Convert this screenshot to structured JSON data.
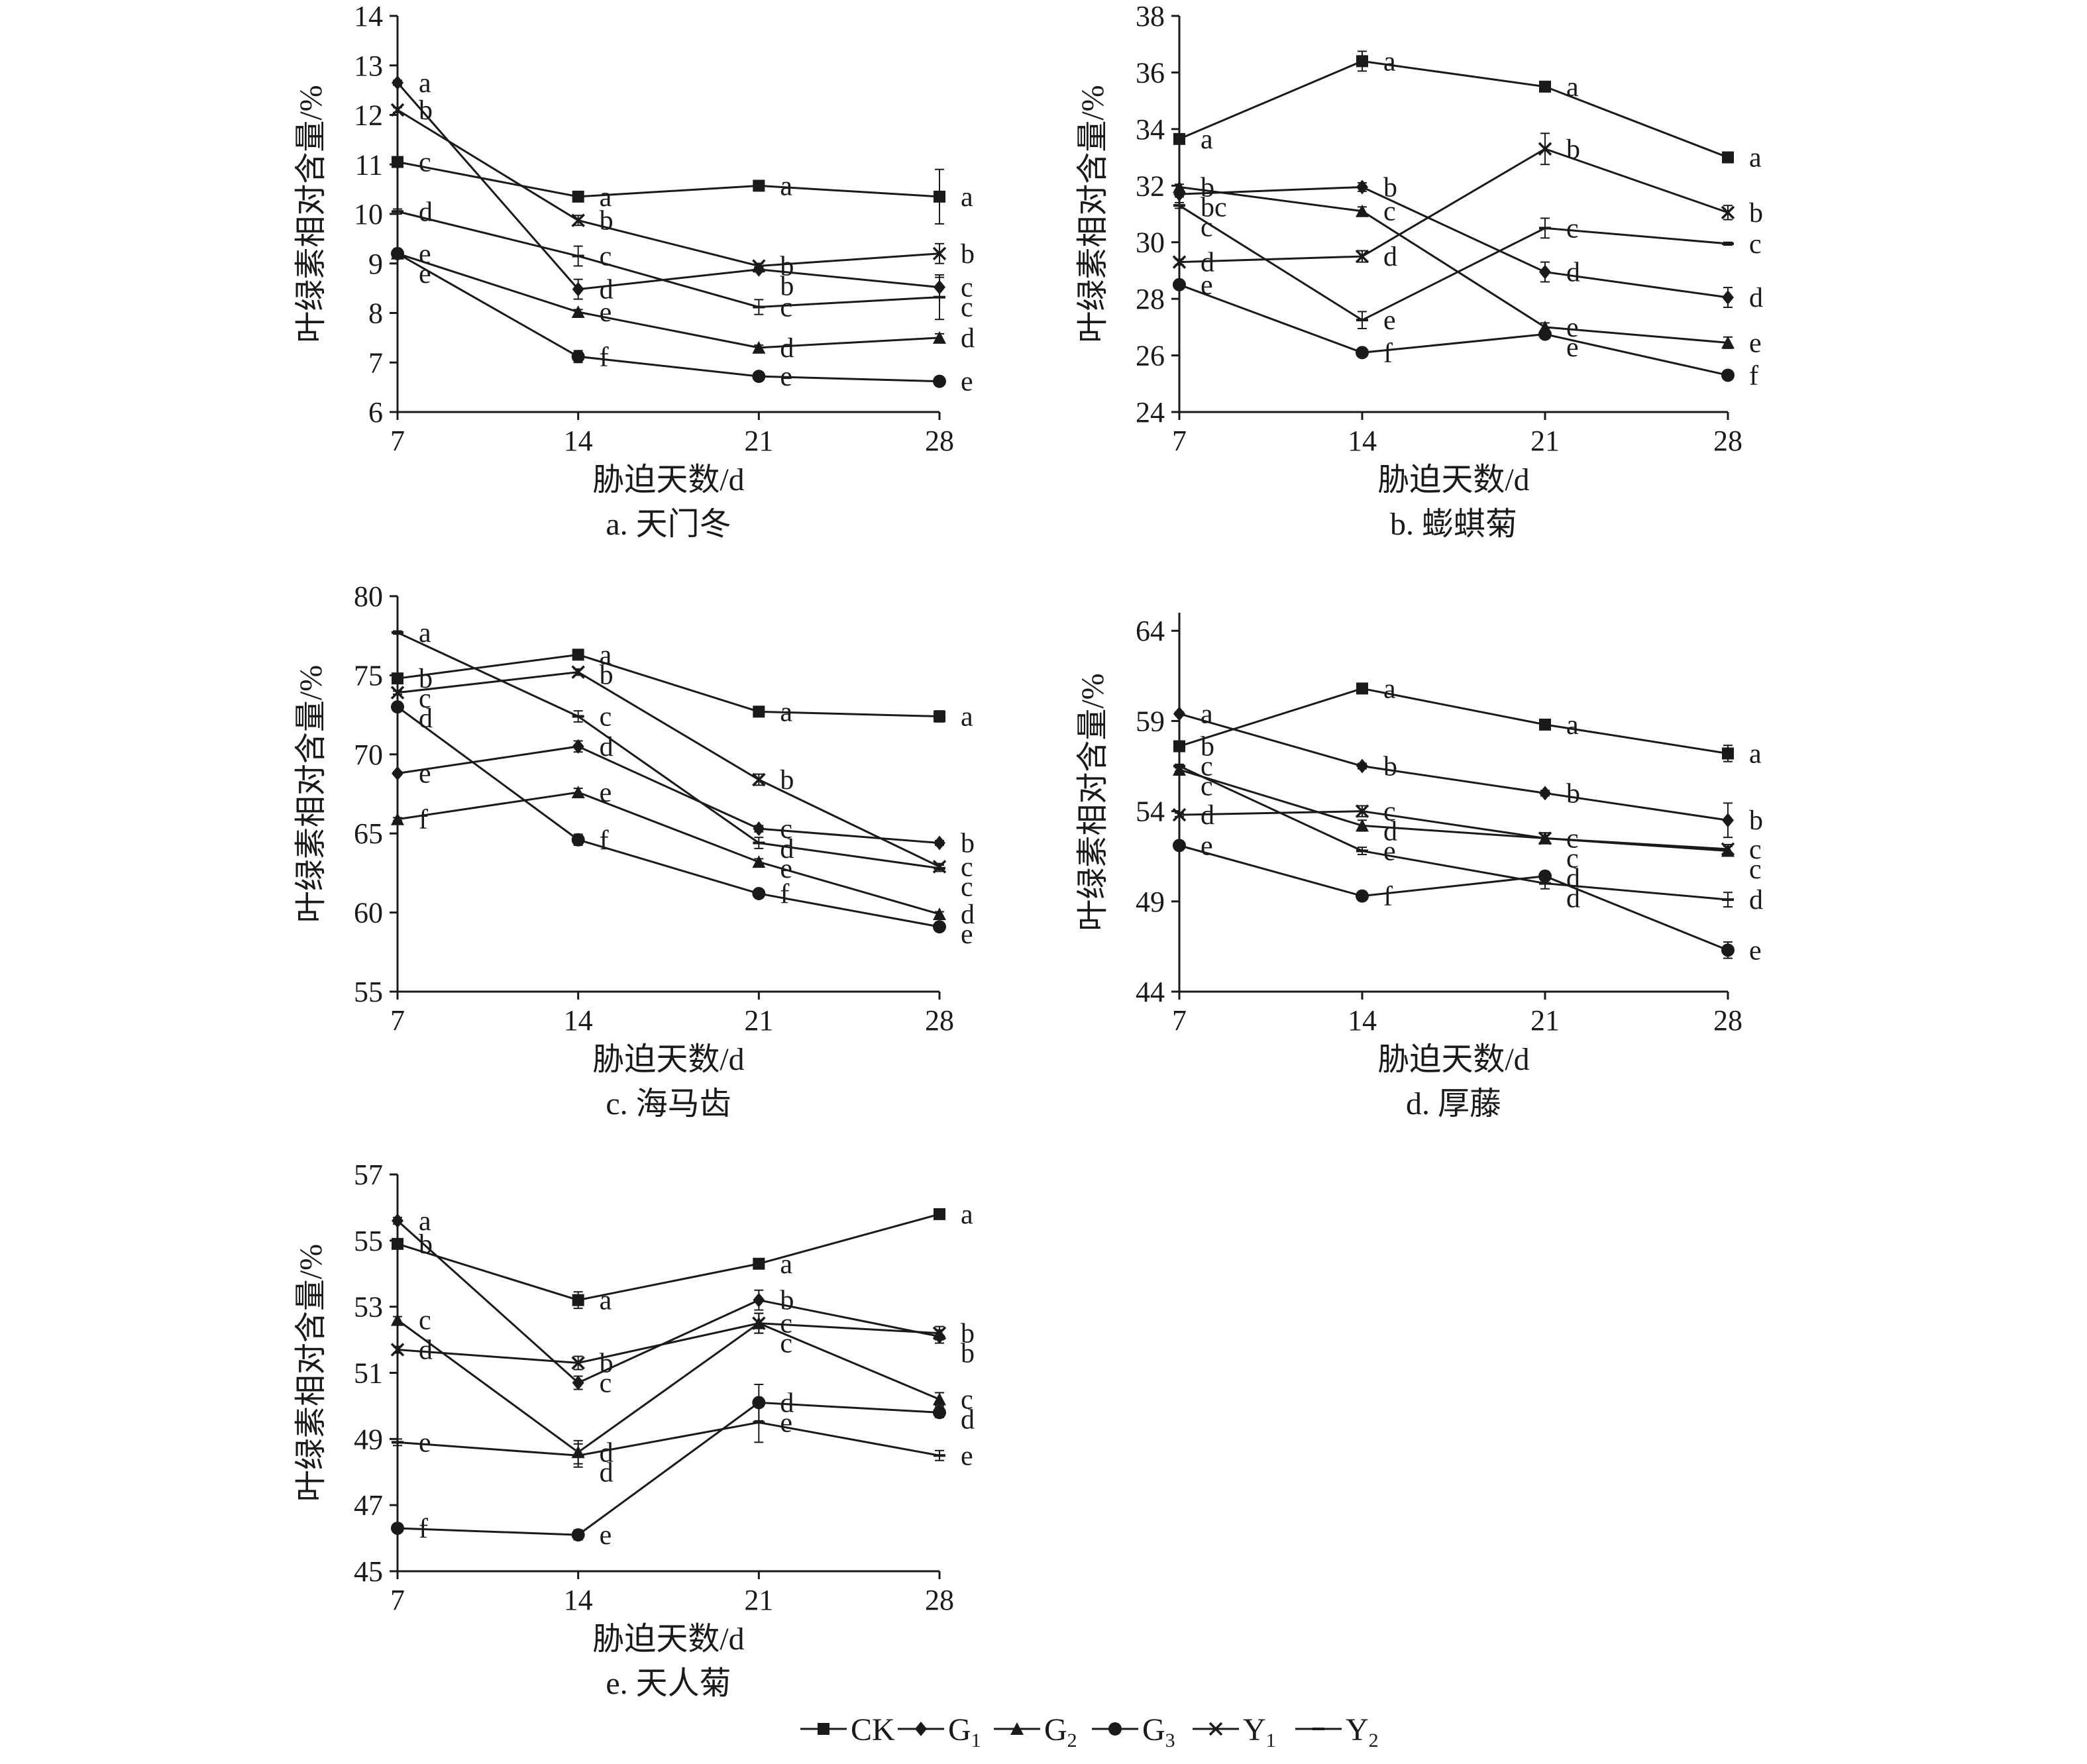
{
  "legend": [
    {
      "name": "CK",
      "base": "CK",
      "sub": "",
      "marker": "square"
    },
    {
      "name": "G1",
      "base": "G",
      "sub": "1",
      "marker": "diamond"
    },
    {
      "name": "G2",
      "base": "G",
      "sub": "2",
      "marker": "triangle"
    },
    {
      "name": "G3",
      "base": "G",
      "sub": "3",
      "marker": "circle"
    },
    {
      "name": "Y1",
      "base": "Y",
      "sub": "1",
      "marker": "cross"
    },
    {
      "name": "Y2",
      "base": "Y",
      "sub": "2",
      "marker": "dash"
    }
  ],
  "chart_data": [
    {
      "type": "line",
      "caption": "a. 天门冬",
      "xlabel": "胁迫天数/d",
      "ylabel": "叶绿素相对含量/%",
      "x": [
        7,
        14,
        21,
        28
      ],
      "ylim": [
        6,
        14
      ],
      "yticks": [
        6,
        7,
        8,
        9,
        10,
        11,
        12,
        13,
        14
      ],
      "series": [
        {
          "name": "CK",
          "values": [
            11.05,
            10.35,
            10.57,
            10.35
          ],
          "errors": [
            0.05,
            0.1,
            0.08,
            0.55
          ],
          "labels": [
            "c",
            "a",
            "a",
            "a"
          ]
        },
        {
          "name": "G1",
          "values": [
            12.65,
            8.48,
            8.88,
            8.52
          ],
          "errors": [
            0.05,
            0.2,
            0.05,
            0.2
          ],
          "labels": [
            "a",
            "d",
            "b",
            "c"
          ]
        },
        {
          "name": "G2",
          "values": [
            9.2,
            8.02,
            7.3,
            7.5
          ],
          "errors": [
            0.05,
            0.05,
            0.05,
            0.08
          ],
          "labels": [
            "e",
            "e",
            "d",
            "d"
          ]
        },
        {
          "name": "G3",
          "values": [
            9.2,
            7.12,
            6.72,
            6.62
          ],
          "errors": [
            0.05,
            0.12,
            0.05,
            0.05
          ],
          "labels": [
            "e",
            "f",
            "e",
            "e"
          ]
        },
        {
          "name": "Y1",
          "values": [
            12.1,
            9.87,
            8.95,
            9.2
          ],
          "errors": [
            0.05,
            0.1,
            0.05,
            0.2
          ],
          "labels": [
            "b",
            "b",
            "b",
            "b"
          ]
        },
        {
          "name": "Y2",
          "values": [
            10.05,
            9.15,
            8.12,
            8.32
          ],
          "errors": [
            0.05,
            0.2,
            0.15,
            0.45
          ],
          "labels": [
            "d",
            "c",
            "c",
            "c"
          ]
        }
      ]
    },
    {
      "type": "line",
      "caption": "b. 蟛蜞菊",
      "xlabel": "胁迫天数/d",
      "ylabel": "叶绿素相对含量/%",
      "x": [
        7,
        14,
        21,
        28
      ],
      "ylim": [
        24,
        38
      ],
      "yticks": [
        24,
        26,
        28,
        30,
        32,
        34,
        36,
        38
      ],
      "series": [
        {
          "name": "CK",
          "values": [
            33.65,
            36.4,
            35.5,
            33.0
          ],
          "errors": [
            0.1,
            0.35,
            0.15,
            0.1
          ],
          "labels": [
            "a",
            "a",
            "a",
            "a"
          ]
        },
        {
          "name": "G1",
          "values": [
            31.7,
            31.95,
            28.95,
            28.05
          ],
          "errors": [
            0.1,
            0.15,
            0.35,
            0.35
          ],
          "labels": [
            "bc",
            "b",
            "d",
            "d"
          ]
        },
        {
          "name": "G2",
          "values": [
            31.95,
            31.1,
            27.0,
            26.45
          ],
          "errors": [
            0.1,
            0.15,
            0.15,
            0.2
          ],
          "labels": [
            "b",
            "c",
            "e",
            "e"
          ]
        },
        {
          "name": "G3",
          "values": [
            28.5,
            26.1,
            26.75,
            25.3
          ],
          "errors": [
            0.1,
            0.1,
            0.1,
            0.1
          ],
          "labels": [
            "e",
            "f",
            "e",
            "f"
          ]
        },
        {
          "name": "Y1",
          "values": [
            29.3,
            29.5,
            33.3,
            31.05
          ],
          "errors": [
            0.1,
            0.2,
            0.55,
            0.25
          ],
          "labels": [
            "d",
            "d",
            "b",
            "b"
          ]
        },
        {
          "name": "Y2",
          "values": [
            31.3,
            27.25,
            30.5,
            29.95
          ],
          "errors": [
            0.1,
            0.3,
            0.35,
            0.05
          ],
          "labels": [
            "c",
            "e",
            "c",
            "c"
          ]
        }
      ]
    },
    {
      "type": "line",
      "caption": "c. 海马齿",
      "xlabel": "胁迫天数/d",
      "ylabel": "叶绿素相对含量/%",
      "x": [
        7,
        14,
        21,
        28
      ],
      "ylim": [
        55,
        80
      ],
      "yticks": [
        55,
        60,
        65,
        70,
        75,
        80
      ],
      "series": [
        {
          "name": "CK",
          "values": [
            74.8,
            76.3,
            72.7,
            72.4
          ],
          "errors": [
            0.1,
            0.2,
            0.15,
            0.35
          ],
          "labels": [
            "b",
            "a",
            "a",
            "a"
          ]
        },
        {
          "name": "G1",
          "values": [
            68.8,
            70.5,
            65.3,
            64.4
          ],
          "errors": [
            0.1,
            0.35,
            0.2,
            0.15
          ],
          "labels": [
            "e",
            "d",
            "c",
            "b"
          ]
        },
        {
          "name": "G2",
          "values": [
            65.9,
            67.6,
            63.2,
            59.9
          ],
          "errors": [
            0.1,
            0.25,
            0.2,
            0.15
          ],
          "labels": [
            "f",
            "e",
            "e",
            "d"
          ]
        },
        {
          "name": "G3",
          "values": [
            73.0,
            64.6,
            61.2,
            59.1
          ],
          "errors": [
            0.1,
            0.35,
            0.2,
            0.15
          ],
          "labels": [
            "d",
            "f",
            "f",
            "e"
          ]
        },
        {
          "name": "Y1",
          "values": [
            73.9,
            75.2,
            68.4,
            62.9
          ],
          "errors": [
            0.1,
            0.2,
            0.35,
            0.2
          ],
          "labels": [
            "c",
            "b",
            "b",
            "c"
          ]
        },
        {
          "name": "Y2",
          "values": [
            77.7,
            72.4,
            64.4,
            62.8
          ],
          "errors": [
            0.1,
            0.35,
            0.35,
            0.2
          ],
          "labels": [
            "a",
            "c",
            "d",
            "c"
          ]
        }
      ]
    },
    {
      "type": "line",
      "caption": "d. 厚藤",
      "xlabel": "胁迫天数/d",
      "ylabel": "叶绿素相对含量/%",
      "x": [
        7,
        14,
        21,
        28
      ],
      "ylim": [
        44,
        65
      ],
      "yticks": [
        44,
        49,
        54,
        59,
        64
      ],
      "series": [
        {
          "name": "CK",
          "values": [
            57.6,
            60.8,
            58.8,
            57.2
          ],
          "errors": [
            0.1,
            0.2,
            0.2,
            0.45
          ],
          "labels": [
            "b",
            "a",
            "a",
            "a"
          ]
        },
        {
          "name": "G1",
          "values": [
            59.4,
            56.5,
            55.0,
            53.5
          ],
          "errors": [
            0.1,
            0.15,
            0.15,
            0.95
          ],
          "labels": [
            "a",
            "b",
            "b",
            "b"
          ]
        },
        {
          "name": "G2",
          "values": [
            56.3,
            53.2,
            52.5,
            51.8
          ],
          "errors": [
            0.1,
            0.3,
            0.3,
            0.25
          ],
          "labels": [
            "c",
            "d",
            "c",
            "c"
          ]
        },
        {
          "name": "G3",
          "values": [
            52.1,
            49.3,
            50.4,
            46.3
          ],
          "errors": [
            0.1,
            0.15,
            0.25,
            0.45
          ],
          "labels": [
            "e",
            "f",
            "d",
            "e"
          ]
        },
        {
          "name": "Y1",
          "values": [
            53.8,
            54.0,
            52.5,
            51.9
          ],
          "errors": [
            0.1,
            0.3,
            0.3,
            0.25
          ],
          "labels": [
            "d",
            "c",
            "c",
            "c"
          ]
        },
        {
          "name": "Y2",
          "values": [
            56.5,
            51.8,
            50.0,
            49.1
          ],
          "errors": [
            0.1,
            0.2,
            0.3,
            0.4
          ],
          "labels": [
            "c",
            "e",
            "d",
            "d"
          ]
        }
      ]
    },
    {
      "type": "line",
      "caption": "e. 天人菊",
      "xlabel": "胁迫天数/d",
      "ylabel": "叶绿素相对含量/%",
      "x": [
        7,
        14,
        21,
        28
      ],
      "ylim": [
        45,
        57
      ],
      "yticks": [
        45,
        47,
        49,
        51,
        53,
        55,
        57
      ],
      "series": [
        {
          "name": "CK",
          "values": [
            54.9,
            53.2,
            54.3,
            55.8
          ],
          "errors": [
            0.15,
            0.25,
            0.15,
            0.05
          ],
          "labels": [
            "b",
            "a",
            "a",
            "a"
          ]
        },
        {
          "name": "G1",
          "values": [
            55.6,
            50.7,
            53.2,
            52.1
          ],
          "errors": [
            0.1,
            0.2,
            0.3,
            0.2
          ],
          "labels": [
            "a",
            "c",
            "b",
            "b"
          ]
        },
        {
          "name": "G2",
          "values": [
            52.6,
            48.6,
            52.5,
            50.2
          ],
          "errors": [
            0.1,
            0.35,
            0.3,
            0.2
          ],
          "labels": [
            "c",
            "d",
            "c",
            "c"
          ]
        },
        {
          "name": "G3",
          "values": [
            46.3,
            46.1,
            50.1,
            49.8
          ],
          "errors": [
            0.1,
            0.15,
            0.55,
            0.15
          ],
          "labels": [
            "f",
            "e",
            "d",
            "d"
          ]
        },
        {
          "name": "Y1",
          "values": [
            51.7,
            51.3,
            52.5,
            52.2
          ],
          "errors": [
            0.1,
            0.2,
            0.3,
            0.2
          ],
          "labels": [
            "d",
            "b",
            "c",
            "b"
          ]
        },
        {
          "name": "Y2",
          "values": [
            48.9,
            48.5,
            49.5,
            48.5
          ],
          "errors": [
            0.1,
            0.35,
            0.6,
            0.15
          ],
          "labels": [
            "e",
            "d",
            "e",
            "e"
          ]
        }
      ]
    }
  ]
}
